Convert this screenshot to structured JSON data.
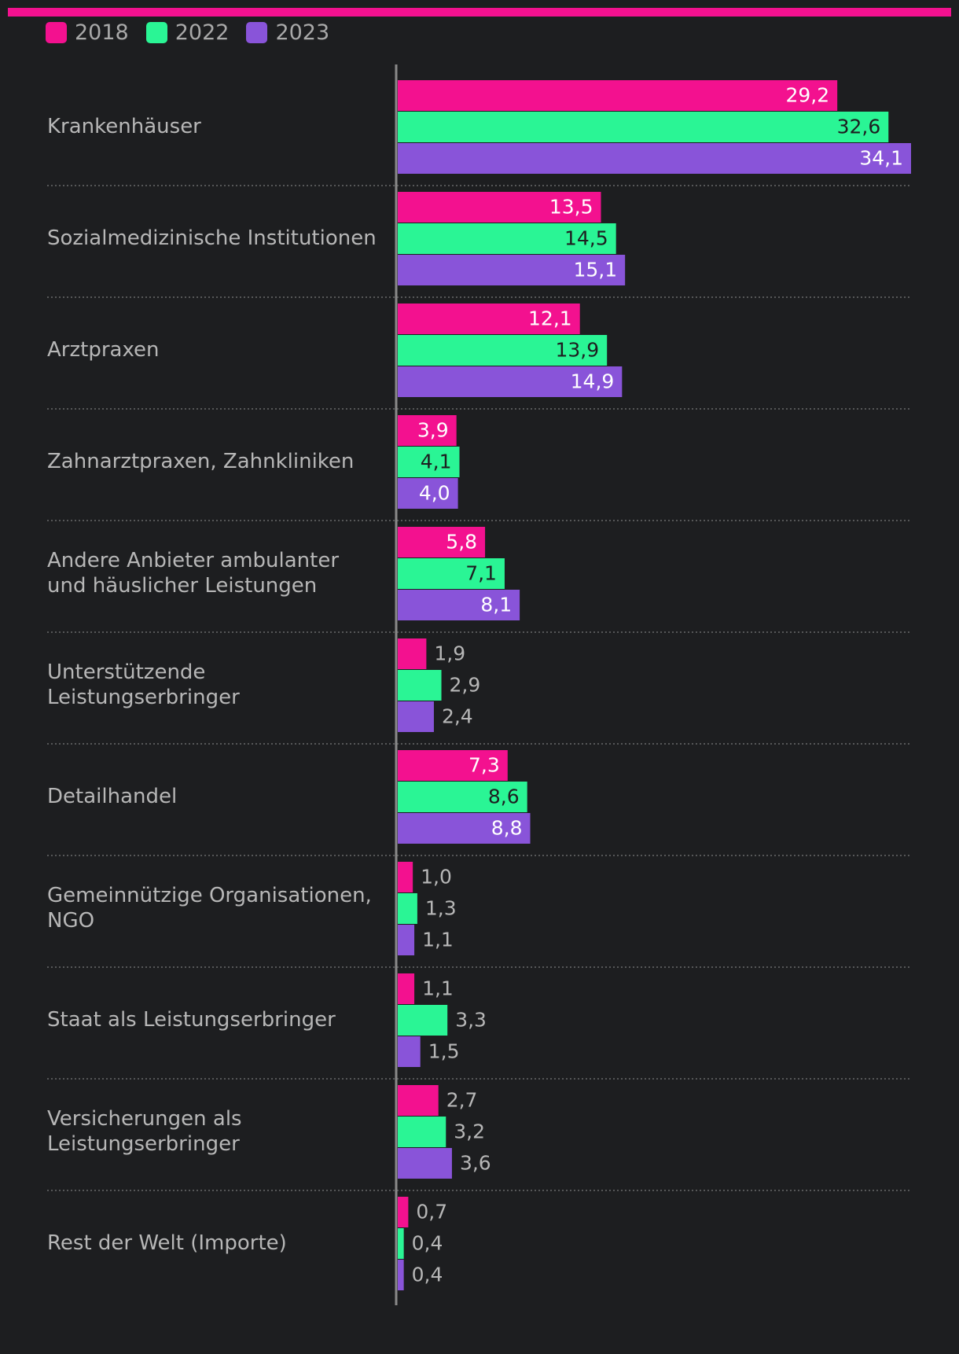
{
  "colors": {
    "background": "#1d1e20",
    "accent_bar": "#f3118f",
    "series": [
      "#f3118f",
      "#2af595",
      "#8954d9"
    ],
    "label_inside_dark": "#1d1e20",
    "label_inside_light": "#ffffff",
    "label_outside": "#b7b7b7",
    "separator": "#6a6a6a",
    "axis": "#8a8a8a"
  },
  "legend": [
    {
      "label": "2018"
    },
    {
      "label": "2022"
    },
    {
      "label": "2023"
    }
  ],
  "chart_data": {
    "type": "bar",
    "orientation": "horizontal",
    "title": "",
    "xlabel": "",
    "ylabel": "",
    "xlim": [
      0,
      34.1
    ],
    "grid": false,
    "legend_position": "top-left",
    "decimal_separator": ",",
    "categories": [
      [
        "Krankenhäuser"
      ],
      [
        "Sozialmedizinische Institutionen"
      ],
      [
        "Arztpraxen"
      ],
      [
        "Zahnarztpraxen, Zahnkliniken"
      ],
      [
        "Andere Anbieter ambulanter",
        "und häuslicher Leistungen"
      ],
      [
        "Unterstützende",
        "Leistungserbringer"
      ],
      [
        "Detailhandel"
      ],
      [
        "Gemeinnützige Organisationen,",
        "NGO"
      ],
      [
        "Staat als Leistungserbringer"
      ],
      [
        "Versicherungen als",
        "Leistungserbringer"
      ],
      [
        "Rest der Welt (Importe)"
      ]
    ],
    "series": [
      {
        "name": "2018",
        "values": [
          29.2,
          13.5,
          12.1,
          3.9,
          5.8,
          1.9,
          7.3,
          1.0,
          1.1,
          2.7,
          0.7
        ]
      },
      {
        "name": "2022",
        "values": [
          32.6,
          14.5,
          13.9,
          4.1,
          7.1,
          2.9,
          8.6,
          1.3,
          3.3,
          3.2,
          0.4
        ]
      },
      {
        "name": "2023",
        "values": [
          34.1,
          15.1,
          14.9,
          4.0,
          8.1,
          2.4,
          8.8,
          1.1,
          1.5,
          3.6,
          0.4
        ]
      }
    ]
  }
}
